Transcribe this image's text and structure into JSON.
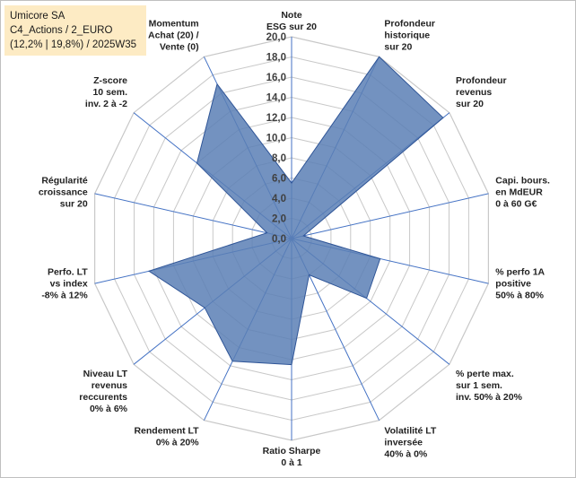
{
  "header": {
    "company": "Umicore SA",
    "category": "C4_Actions / 2_EURO",
    "stats": "(12,2% | 19,8%) / 2025W35"
  },
  "chart_data": {
    "type": "radar",
    "rmax": 20,
    "tick_step": 2,
    "grid": true,
    "tick_labels": [
      "0,0",
      "2,0",
      "4,0",
      "6,0",
      "8,0",
      "10,0",
      "12,0",
      "14,0",
      "16,0",
      "18,0",
      "20,0"
    ],
    "axes": [
      {
        "label": [
          "Note",
          "ESG sur 20"
        ],
        "value": 5.5
      },
      {
        "label": [
          "Profondeur",
          "historique",
          "sur 20"
        ],
        "value": 20.0
      },
      {
        "label": [
          "Profondeur",
          "revenus",
          "sur 20"
        ],
        "value": 19.2
      },
      {
        "label": [
          "Capi. bours.",
          "en MdEUR",
          "0 à 60 G€"
        ],
        "value": 1.2
      },
      {
        "label": [
          "% perfo 1A",
          "positive",
          "50% à 80%"
        ],
        "value": 9.0
      },
      {
        "label": [
          "% perte max.",
          "sur 1 sem.",
          "inv. 50% à 20%"
        ],
        "value": 9.5
      },
      {
        "label": [
          "Volatilité LT",
          "inversée",
          "40% à 0%"
        ],
        "value": 4.0
      },
      {
        "label": [
          "Ratio Sharpe",
          "0 à 1"
        ],
        "value": 12.5
      },
      {
        "label": [
          "Rendement LT",
          "0% à 20%"
        ],
        "value": 13.5
      },
      {
        "label": [
          "Niveau LT",
          "revenus",
          "reccurents",
          "0% à 6%"
        ],
        "value": 11.0
      },
      {
        "label": [
          "Perfo. LT",
          "vs index",
          "-8% à 12%"
        ],
        "value": 14.5
      },
      {
        "label": [
          "Régularité",
          "croissance",
          "sur 20"
        ],
        "value": 2.5
      },
      {
        "label": [
          "Z-score",
          "10 sem.",
          "inv. 2 à -2"
        ],
        "value": 12.0
      },
      {
        "label": [
          "Momentum",
          "Achat (20) /",
          "Vente (0)"
        ],
        "value": 17.0
      }
    ],
    "colors": {
      "fill": "#5a7fb5",
      "stroke": "#2f5597",
      "spoke": "#4472c4",
      "grid": "#c8c8c8"
    }
  }
}
